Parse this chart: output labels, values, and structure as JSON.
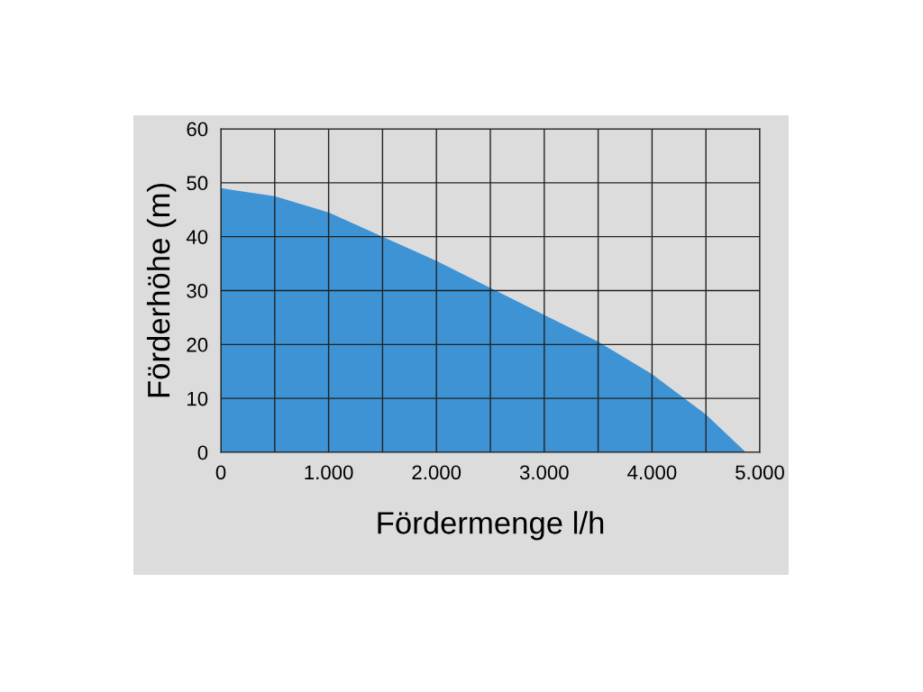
{
  "chart_data": {
    "type": "area",
    "xlabel": "Fördermenge l/h",
    "ylabel": "Förderhöhe (m)",
    "x": [
      0,
      500,
      1000,
      1500,
      2000,
      2500,
      3000,
      3500,
      4000,
      4500,
      4870
    ],
    "series": [
      {
        "color": "#3d93d4",
        "values": [
          49,
          47.5,
          44.5,
          40,
          35.5,
          30.5,
          25.5,
          20.5,
          14.5,
          7,
          0
        ]
      }
    ],
    "xlim": [
      0,
      5000
    ],
    "ylim": [
      0,
      60
    ],
    "xticks": [
      0,
      {
        "value": 1000,
        "label": "1.000"
      },
      {
        "value": 2000,
        "label": "2.000"
      },
      {
        "value": 3000,
        "label": "3.000"
      },
      {
        "value": 4000,
        "label": "4.000"
      },
      {
        "value": 5000,
        "label": "5.000"
      }
    ],
    "yticks": [
      0,
      10,
      20,
      30,
      40,
      50,
      60
    ],
    "grid": true
  }
}
